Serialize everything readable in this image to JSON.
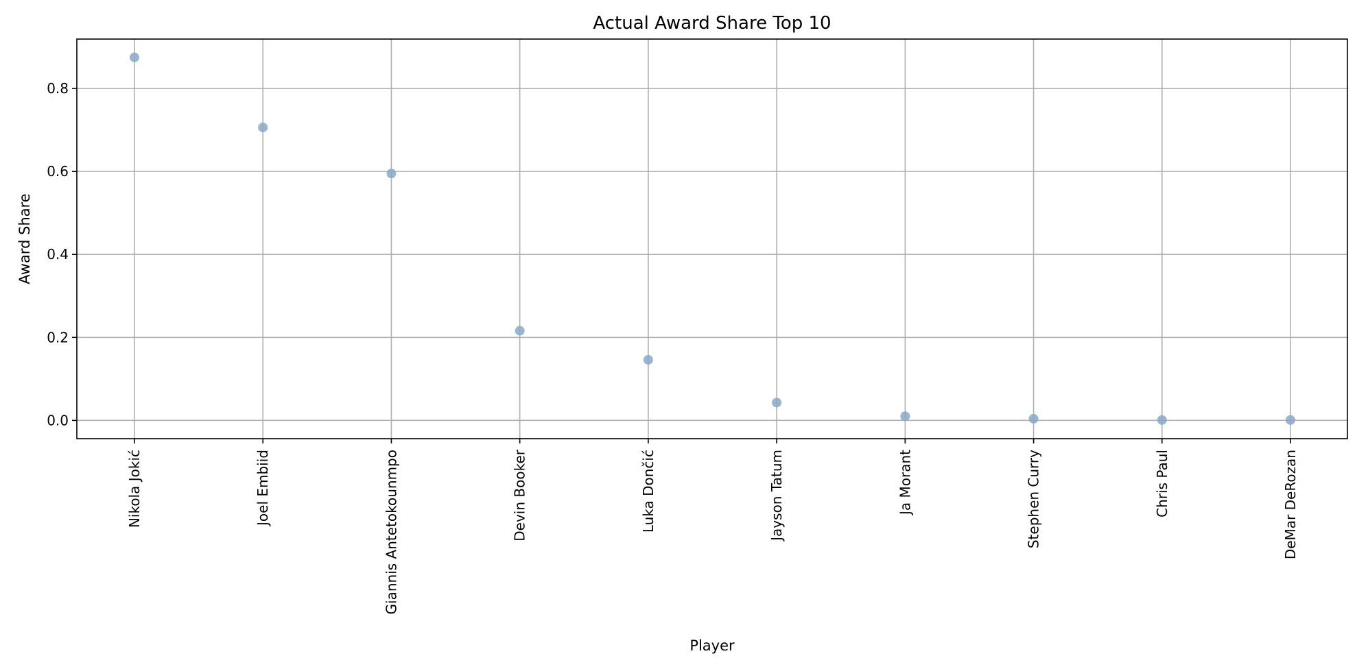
{
  "chart_data": {
    "type": "scatter",
    "title": "Actual Award Share Top 10",
    "xlabel": "Player",
    "ylabel": "Award Share",
    "categories": [
      "Nikola Jokić",
      "Joel Embiid",
      "Giannis Antetokounmpo",
      "Devin Booker",
      "Luka Dončić",
      "Jayson Tatum",
      "Ja Morant",
      "Stephen Curry",
      "Chris Paul",
      "DeMar DeRozan"
    ],
    "values": [
      0.875,
      0.706,
      0.595,
      0.216,
      0.146,
      0.043,
      0.01,
      0.004,
      0.001,
      0.001
    ],
    "ylim": [
      -0.044,
      0.919
    ],
    "yticks": [
      0.0,
      0.2,
      0.4,
      0.6,
      0.8
    ],
    "ytick_labels": [
      "0.0",
      "0.2",
      "0.4",
      "0.6",
      "0.8"
    ],
    "grid": true,
    "marker_color": "#87a9c9"
  }
}
